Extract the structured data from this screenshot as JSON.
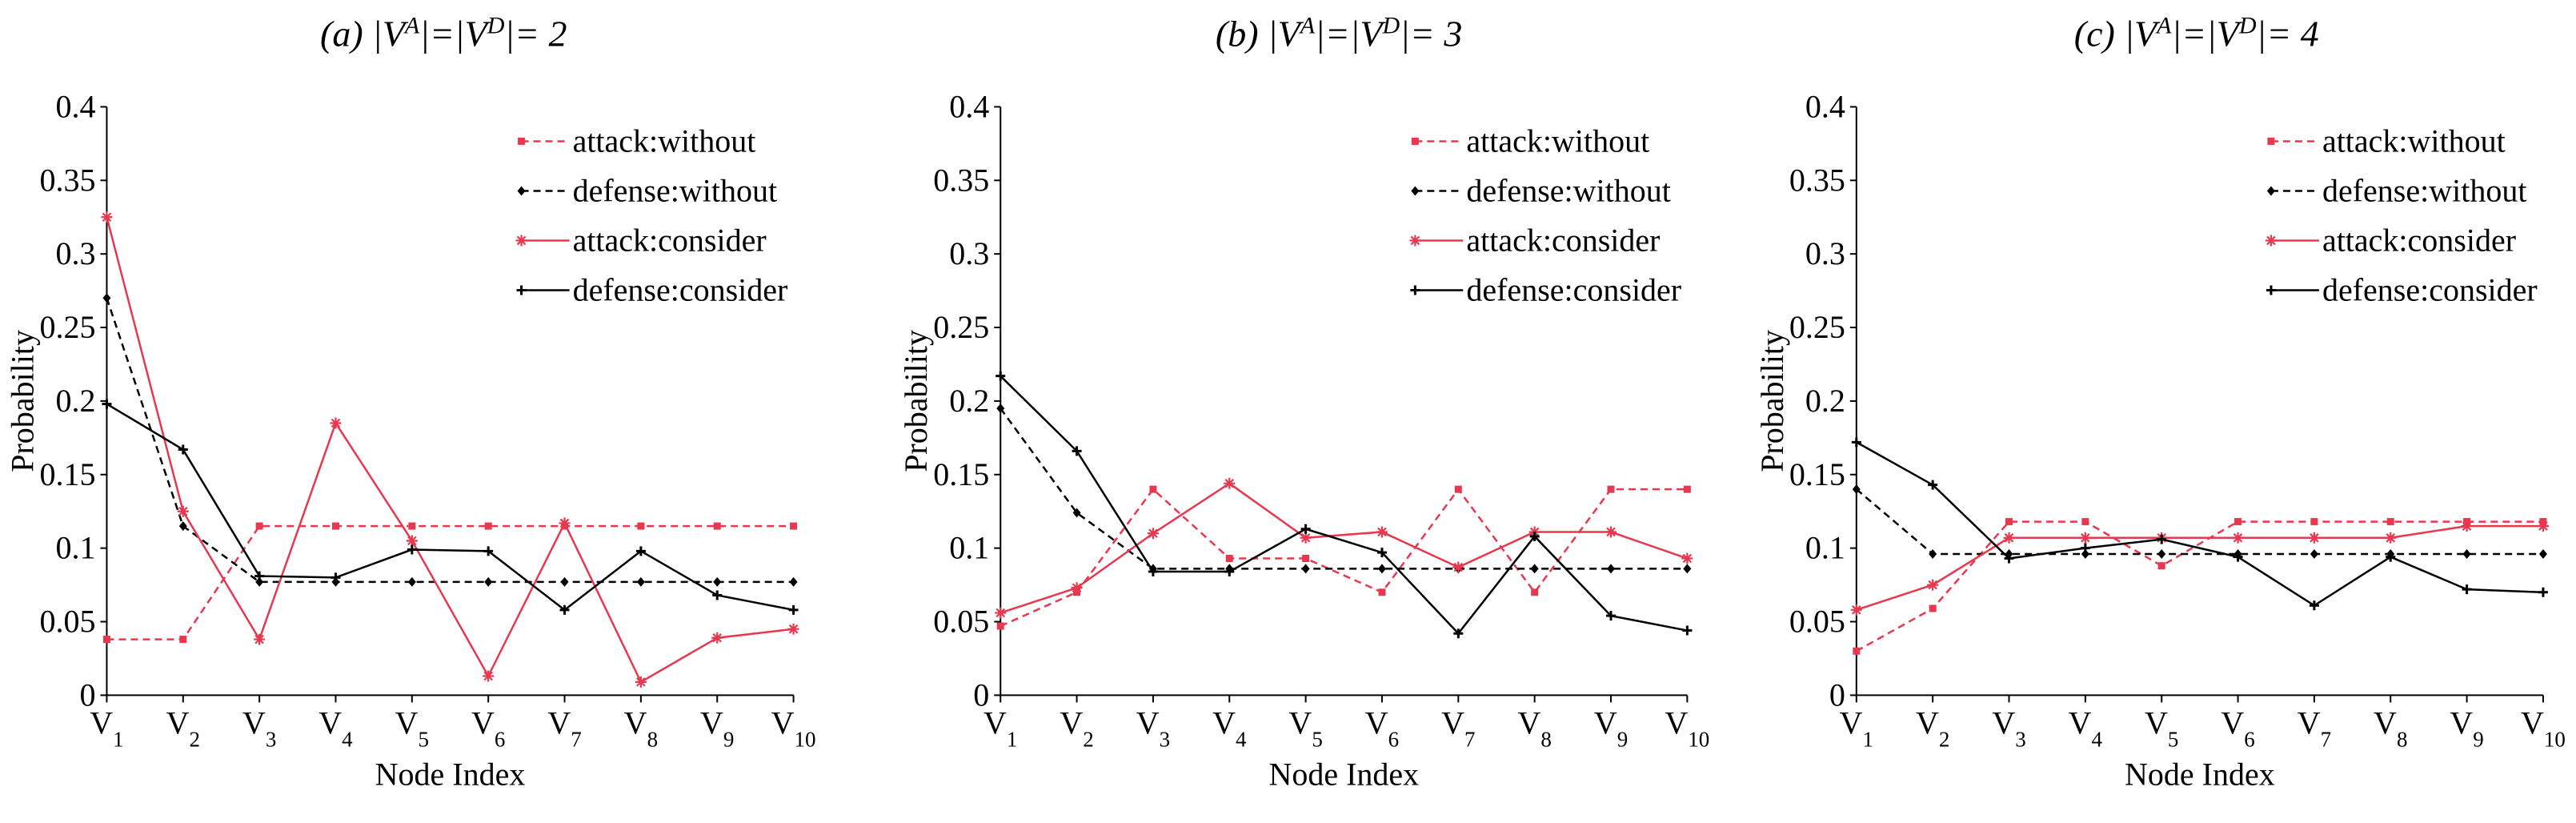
{
  "colors": {
    "attack": "#e8384f",
    "defense": "#000000",
    "axis": "#000000"
  },
  "chart_data": [
    {
      "type": "line",
      "title": {
        "prefix": "(a) |V",
        "sup1": "A",
        "mid": "|=|V",
        "sup2": "D",
        "suffix": "|= 2"
      },
      "xlabel": "Node Index",
      "ylabel": "Probability",
      "ylim": [
        0,
        0.4
      ],
      "y_ticks": [
        "0",
        "0.05",
        "0.1",
        "0.15",
        "0.2",
        "0.25",
        "0.3",
        "0.35",
        "0.4"
      ],
      "categories": [
        {
          "main": "V",
          "sub": "1"
        },
        {
          "main": "V",
          "sub": "2"
        },
        {
          "main": "V",
          "sub": "3"
        },
        {
          "main": "V",
          "sub": "4"
        },
        {
          "main": "V",
          "sub": "5"
        },
        {
          "main": "V",
          "sub": "6"
        },
        {
          "main": "V",
          "sub": "7"
        },
        {
          "main": "V",
          "sub": "8"
        },
        {
          "main": "V",
          "sub": "9"
        },
        {
          "main": "V",
          "sub": "10"
        }
      ],
      "legend_position": "top-right",
      "series": [
        {
          "name": "attack:without",
          "color": "#e8384f",
          "dash": true,
          "marker": "square",
          "values": [
            0.038,
            0.038,
            0.115,
            0.115,
            0.115,
            0.115,
            0.115,
            0.115,
            0.115,
            0.115
          ]
        },
        {
          "name": "defense:without",
          "color": "#000000",
          "dash": true,
          "marker": "diamond",
          "values": [
            0.27,
            0.115,
            0.077,
            0.077,
            0.077,
            0.077,
            0.077,
            0.077,
            0.077,
            0.077
          ]
        },
        {
          "name": "attack:consider",
          "color": "#e8384f",
          "dash": false,
          "marker": "star",
          "values": [
            0.325,
            0.125,
            0.038,
            0.185,
            0.105,
            0.013,
            0.117,
            0.009,
            0.039,
            0.045
          ]
        },
        {
          "name": "defense:consider",
          "color": "#000000",
          "dash": false,
          "marker": "plus",
          "values": [
            0.198,
            0.167,
            0.081,
            0.08,
            0.099,
            0.098,
            0.058,
            0.098,
            0.068,
            0.058
          ]
        }
      ]
    },
    {
      "type": "line",
      "title": {
        "prefix": "(b) |V",
        "sup1": "A",
        "mid": "|=|V",
        "sup2": "D",
        "suffix": "|= 3"
      },
      "xlabel": "Node Index",
      "ylabel": "Probability",
      "ylim": [
        0,
        0.4
      ],
      "y_ticks": [
        "0",
        "0.05",
        "0.1",
        "0.15",
        "0.2",
        "0.25",
        "0.3",
        "0.35",
        "0.4"
      ],
      "categories": [
        {
          "main": "V",
          "sub": "1"
        },
        {
          "main": "V",
          "sub": "2"
        },
        {
          "main": "V",
          "sub": "3"
        },
        {
          "main": "V",
          "sub": "4"
        },
        {
          "main": "V",
          "sub": "5"
        },
        {
          "main": "V",
          "sub": "6"
        },
        {
          "main": "V",
          "sub": "7"
        },
        {
          "main": "V",
          "sub": "8"
        },
        {
          "main": "V",
          "sub": "9"
        },
        {
          "main": "V",
          "sub": "10"
        }
      ],
      "legend_position": "top-right",
      "series": [
        {
          "name": "attack:without",
          "color": "#e8384f",
          "dash": true,
          "marker": "square",
          "values": [
            0.047,
            0.07,
            0.14,
            0.093,
            0.093,
            0.07,
            0.14,
            0.07,
            0.14,
            0.14
          ]
        },
        {
          "name": "defense:without",
          "color": "#000000",
          "dash": true,
          "marker": "diamond",
          "values": [
            0.195,
            0.124,
            0.086,
            0.086,
            0.086,
            0.086,
            0.086,
            0.086,
            0.086,
            0.086
          ]
        },
        {
          "name": "attack:consider",
          "color": "#e8384f",
          "dash": false,
          "marker": "star",
          "values": [
            0.056,
            0.073,
            0.11,
            0.144,
            0.107,
            0.111,
            0.087,
            0.111,
            0.111,
            0.093
          ]
        },
        {
          "name": "defense:consider",
          "color": "#000000",
          "dash": false,
          "marker": "plus",
          "values": [
            0.217,
            0.166,
            0.084,
            0.084,
            0.113,
            0.097,
            0.042,
            0.108,
            0.054,
            0.044
          ]
        }
      ]
    },
    {
      "type": "line",
      "title": {
        "prefix": "(c) |V",
        "sup1": "A",
        "mid": "|=|V",
        "sup2": "D",
        "suffix": "|= 4"
      },
      "xlabel": "Node Index",
      "ylabel": "Probability",
      "ylim": [
        0,
        0.4
      ],
      "y_ticks": [
        "0",
        "0.05",
        "0.1",
        "0.15",
        "0.2",
        "0.25",
        "0.3",
        "0.35",
        "0.4"
      ],
      "categories": [
        {
          "main": "V",
          "sub": "1"
        },
        {
          "main": "V",
          "sub": "2"
        },
        {
          "main": "V",
          "sub": "3"
        },
        {
          "main": "V",
          "sub": "4"
        },
        {
          "main": "V",
          "sub": "5"
        },
        {
          "main": "V",
          "sub": "6"
        },
        {
          "main": "V",
          "sub": "7"
        },
        {
          "main": "V",
          "sub": "8"
        },
        {
          "main": "V",
          "sub": "9"
        },
        {
          "main": "V",
          "sub": "10"
        }
      ],
      "legend_position": "top-right",
      "series": [
        {
          "name": "attack:without",
          "color": "#e8384f",
          "dash": true,
          "marker": "square",
          "values": [
            0.03,
            0.059,
            0.118,
            0.118,
            0.088,
            0.118,
            0.118,
            0.118,
            0.118,
            0.118
          ]
        },
        {
          "name": "defense:without",
          "color": "#000000",
          "dash": true,
          "marker": "diamond",
          "values": [
            0.14,
            0.096,
            0.096,
            0.096,
            0.096,
            0.096,
            0.096,
            0.096,
            0.096,
            0.096
          ]
        },
        {
          "name": "attack:consider",
          "color": "#e8384f",
          "dash": false,
          "marker": "star",
          "values": [
            0.058,
            0.075,
            0.107,
            0.107,
            0.107,
            0.107,
            0.107,
            0.107,
            0.115,
            0.115
          ]
        },
        {
          "name": "defense:consider",
          "color": "#000000",
          "dash": false,
          "marker": "plus",
          "values": [
            0.172,
            0.143,
            0.093,
            0.1,
            0.106,
            0.094,
            0.061,
            0.094,
            0.072,
            0.07
          ]
        }
      ]
    }
  ]
}
